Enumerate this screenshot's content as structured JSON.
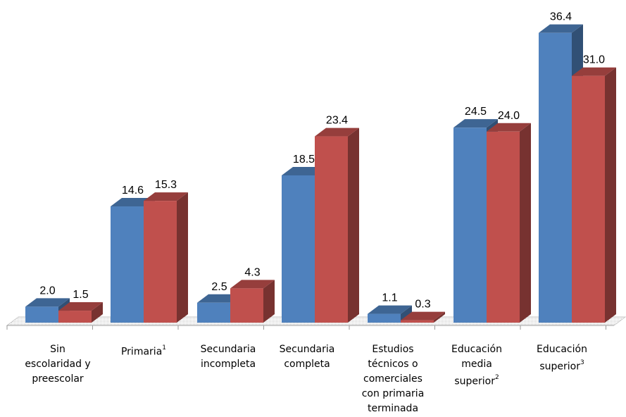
{
  "chart_data": {
    "type": "bar",
    "categories": [
      "Sin escolaridad y preescolar",
      "Primaria",
      "Secundaria incompleta",
      "Secundaria completa",
      "Estudios técnicos o comerciales con primaria terminada",
      "Educación media superior",
      "Educación superior"
    ],
    "category_superscripts": [
      "",
      "1",
      "",
      "",
      "",
      "2",
      "3"
    ],
    "series": [
      {
        "values": [
          2.0,
          14.6,
          2.5,
          18.5,
          1.1,
          24.5,
          36.4
        ],
        "color": "#4F81BD"
      },
      {
        "values": [
          1.5,
          15.3,
          4.3,
          23.4,
          0.3,
          24.0,
          31.0
        ],
        "color": "#C0504D"
      }
    ],
    "value_labels": [
      [
        "2.0",
        "14.6",
        "2.5",
        "18.5",
        "1.1",
        "24.5",
        "36.4"
      ],
      [
        "1.5",
        "15.3",
        "4.3",
        "23.4",
        "0.3",
        "24.0",
        "31.0"
      ]
    ],
    "ylim": [
      0,
      40
    ],
    "grid": false,
    "legend": "none",
    "style": "3d-clustered-column"
  },
  "labels": {
    "cat0": "Sin\nescolaridad y\npreescolar",
    "cat1": "Primaria",
    "cat1_sup": "1",
    "cat2": "Secundaria\nincompleta",
    "cat3": "Secundaria\ncompleta",
    "cat4": "Estudios\ntécnicos o\ncomerciales\ncon primaria\nterminada",
    "cat5": "Educación\nmedia\nsuperior",
    "cat5_sup": "2",
    "cat6": "Educación\nsuperior",
    "cat6_sup": "3"
  }
}
